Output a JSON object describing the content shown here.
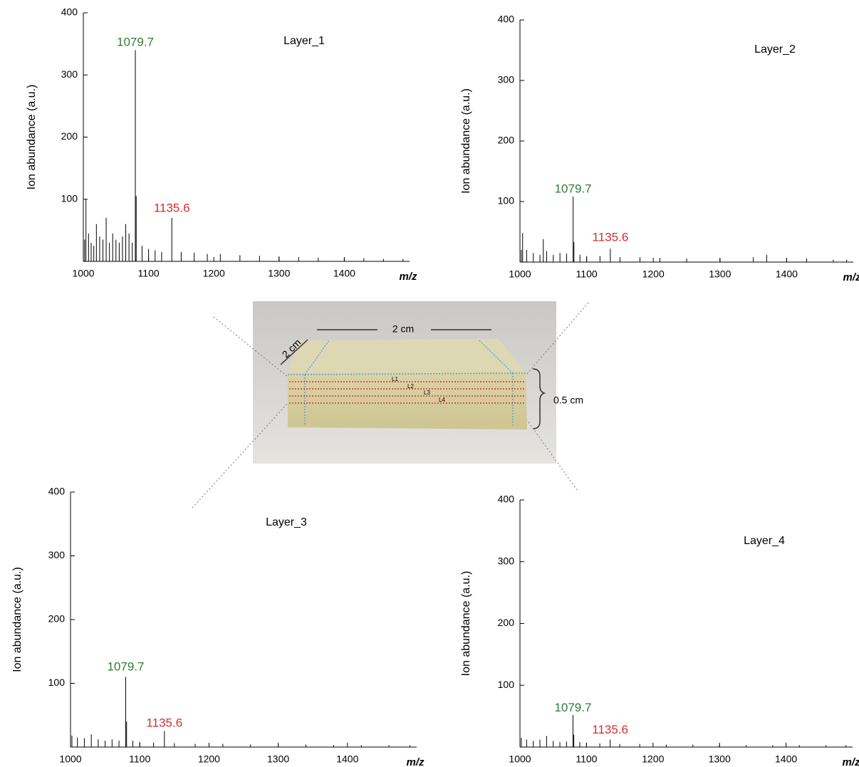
{
  "chart_data": [
    {
      "type": "stick",
      "title": "Layer_1",
      "y_label": "Ion abundance (a.u.)",
      "x_label": "m/z",
      "xlim": [
        1000,
        1500
      ],
      "ylim": [
        0,
        400
      ],
      "xticks": [
        1000,
        1100,
        1200,
        1300,
        1400
      ],
      "yticks": [
        100,
        200,
        300,
        400
      ],
      "color": "#000000",
      "x": [
        1002,
        1004,
        1008,
        1012,
        1016,
        1020,
        1025,
        1030,
        1035,
        1040,
        1045,
        1050,
        1055,
        1060,
        1065,
        1070,
        1075,
        1079.7,
        1081,
        1090,
        1100,
        1110,
        1120,
        1135.6,
        1150,
        1170,
        1190,
        1210,
        1240,
        1270,
        1300,
        1330,
        1360,
        1400,
        1430,
        1460,
        1490
      ],
      "values": [
        35,
        100,
        45,
        30,
        25,
        60,
        40,
        35,
        70,
        30,
        45,
        35,
        30,
        40,
        60,
        45,
        30,
        340,
        105,
        25,
        20,
        18,
        15,
        70,
        15,
        14,
        12,
        12,
        10,
        9,
        8,
        7,
        6,
        5,
        5,
        4,
        4
      ],
      "annotations": [
        {
          "text": "1079.7",
          "x": 1079.7,
          "y": 352,
          "color": "#2e7d32"
        },
        {
          "text": "1135.6",
          "x": 1135.6,
          "y": 85,
          "color": "#d32f2f"
        }
      ]
    },
    {
      "type": "stick",
      "title": "Layer_2",
      "y_label": "Ion abundance (a.u.)",
      "x_label": "m/z",
      "xlim": [
        1000,
        1500
      ],
      "ylim": [
        0,
        400
      ],
      "xticks": [
        1000,
        1100,
        1200,
        1300,
        1400
      ],
      "yticks": [
        100,
        200,
        300,
        400
      ],
      "color": "#000000",
      "x": [
        1002,
        1004,
        1010,
        1020,
        1030,
        1035,
        1040,
        1050,
        1060,
        1070,
        1079.7,
        1081,
        1090,
        1100,
        1120,
        1135.6,
        1150,
        1180,
        1210,
        1250,
        1300,
        1350,
        1370,
        1400,
        1430,
        1470,
        1490
      ],
      "values": [
        20,
        48,
        20,
        15,
        12,
        38,
        18,
        12,
        15,
        14,
        108,
        33,
        12,
        10,
        10,
        22,
        8,
        8,
        7,
        6,
        6,
        8,
        12,
        5,
        6,
        4,
        4
      ],
      "annotations": [
        {
          "text": "1079.7",
          "x": 1079.7,
          "y": 120,
          "color": "#2e7d32"
        },
        {
          "text": "1135.6",
          "x": 1135.6,
          "y": 40,
          "color": "#d32f2f"
        }
      ]
    },
    {
      "type": "stick",
      "title": "Layer_3",
      "y_label": "Ion abundance (a.u.)",
      "x_label": "m/z",
      "xlim": [
        1000,
        1500
      ],
      "ylim": [
        0,
        400
      ],
      "xticks": [
        1000,
        1100,
        1200,
        1300,
        1400
      ],
      "yticks": [
        100,
        200,
        300,
        400
      ],
      "color": "#000000",
      "x": [
        1002,
        1010,
        1020,
        1030,
        1040,
        1050,
        1060,
        1070,
        1079.7,
        1081,
        1090,
        1100,
        1120,
        1135.6,
        1150,
        1180,
        1220,
        1260,
        1300,
        1340,
        1380,
        1420,
        1460,
        1490
      ],
      "values": [
        18,
        15,
        14,
        20,
        12,
        10,
        12,
        10,
        110,
        40,
        10,
        8,
        7,
        25,
        6,
        5,
        5,
        4,
        4,
        4,
        3,
        3,
        3,
        3
      ],
      "annotations": [
        {
          "text": "1079.7",
          "x": 1079.7,
          "y": 125,
          "color": "#2e7d32"
        },
        {
          "text": "1135.6",
          "x": 1135.6,
          "y": 37,
          "color": "#d32f2f"
        }
      ]
    },
    {
      "type": "stick",
      "title": "Layer_4",
      "y_label": "Ion abundance (a.u.)",
      "x_label": "m/z",
      "xlim": [
        1000,
        1500
      ],
      "ylim": [
        0,
        400
      ],
      "xticks": [
        1000,
        1100,
        1200,
        1300,
        1400
      ],
      "yticks": [
        100,
        200,
        300,
        400
      ],
      "color": "#000000",
      "x": [
        1002,
        1010,
        1020,
        1030,
        1040,
        1050,
        1060,
        1070,
        1079.7,
        1081,
        1090,
        1100,
        1120,
        1135.6,
        1150,
        1180,
        1220,
        1260,
        1300,
        1340,
        1380,
        1420,
        1460,
        1490
      ],
      "values": [
        15,
        12,
        10,
        12,
        18,
        10,
        8,
        9,
        52,
        20,
        8,
        7,
        6,
        12,
        5,
        5,
        4,
        4,
        4,
        3,
        3,
        3,
        3,
        3
      ],
      "annotations": [
        {
          "text": "1079.7",
          "x": 1079.7,
          "y": 63,
          "color": "#2e7d32"
        },
        {
          "text": "1135.6",
          "x": 1135.6,
          "y": 27,
          "color": "#d32f2f"
        }
      ]
    }
  ],
  "photo": {
    "width_label": "2 cm",
    "depth_label": "2 cm",
    "height_label": "0.5 cm",
    "layers": [
      "L1",
      "L2",
      "L3",
      "L4"
    ]
  }
}
